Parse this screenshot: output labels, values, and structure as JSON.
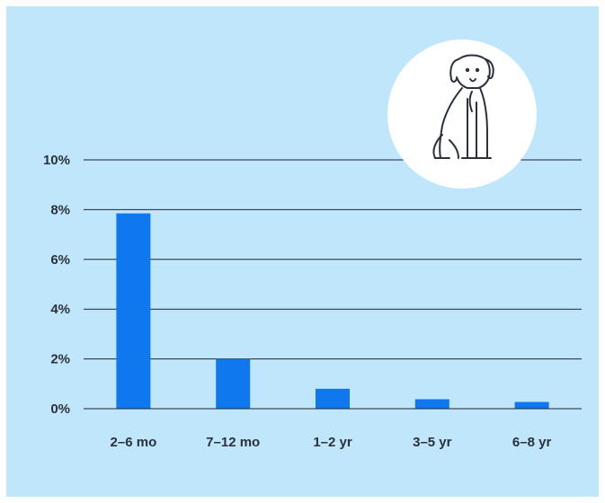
{
  "chart_data": {
    "type": "bar",
    "categories": [
      "2–6 mo",
      "7–12 mo",
      "1–2 yr",
      "3–5 yr",
      "6–8 yr"
    ],
    "values": [
      7.85,
      2.0,
      0.8,
      0.38,
      0.27
    ],
    "ylim": [
      0,
      10
    ],
    "yticks": [
      "0%",
      "2%",
      "4%",
      "6%",
      "8%",
      "10%"
    ],
    "ytick_values": [
      0,
      2,
      4,
      6,
      8,
      10
    ],
    "grid": true,
    "colors": {
      "bar": "#0f78ee",
      "background": "#bfe6fb",
      "badge": "#ffffff"
    },
    "icon": "dog-icon"
  }
}
